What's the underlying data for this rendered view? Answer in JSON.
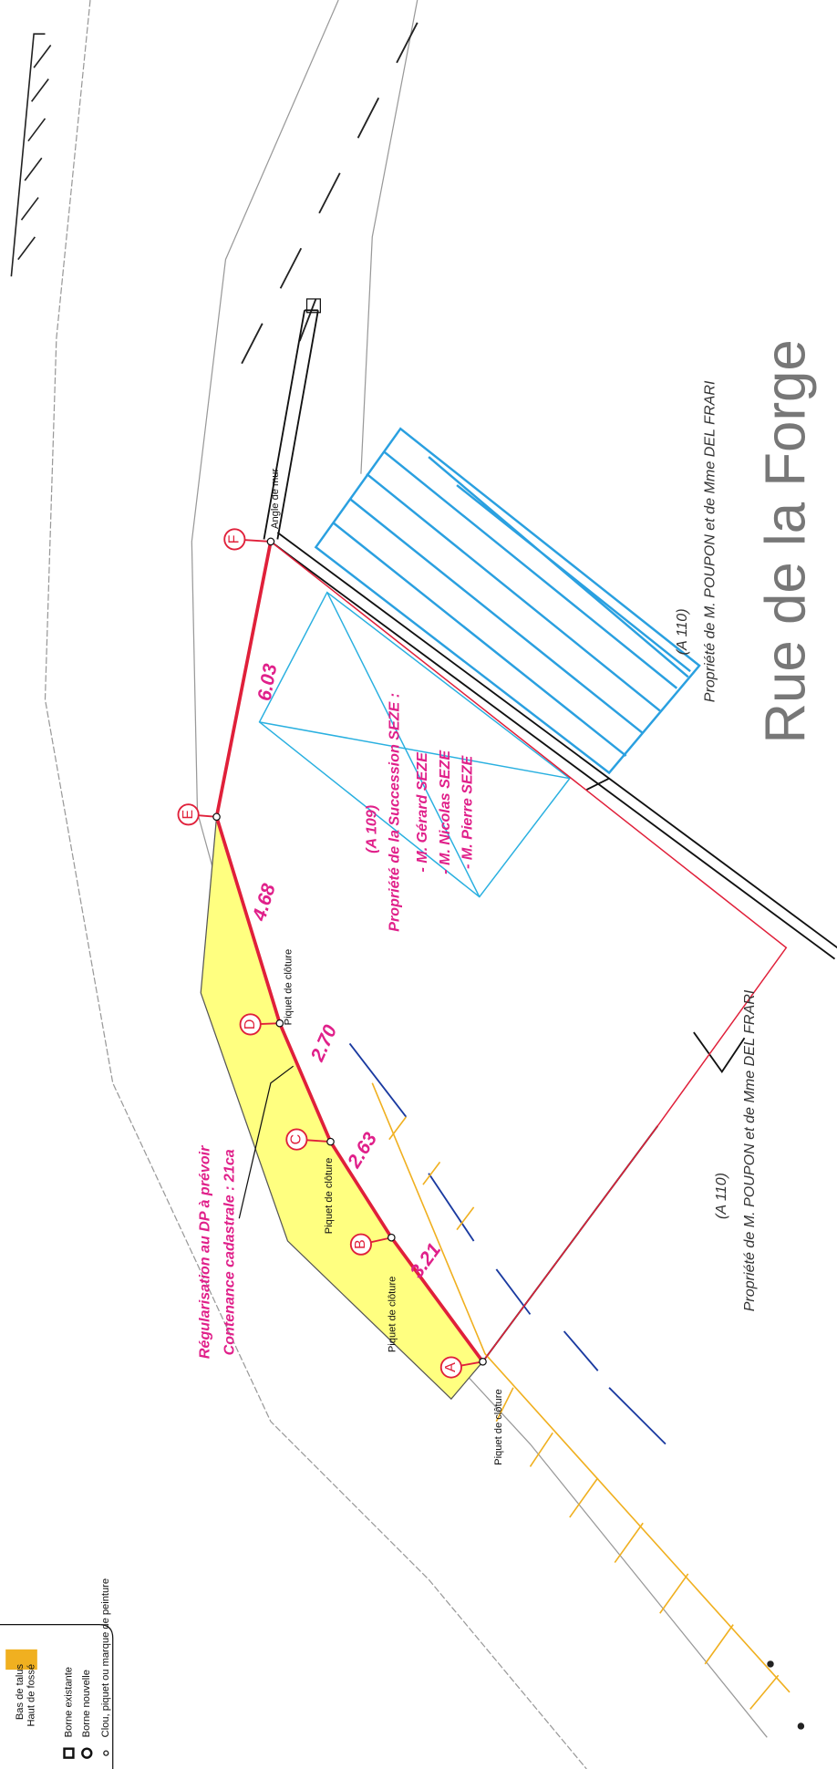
{
  "street": "Rue de la Forge",
  "parcels": [
    {
      "ref": "(A 110)",
      "owner": "Propriété de M. POUPON et de Mme DEL FRARI"
    },
    {
      "ref": "(A 109)",
      "owner": "Propriété de la Succession SEZE :",
      "members": [
        "- M. Gérard SEZE",
        "- M. Nicolas SEZE",
        "- M. Pierre SEZE"
      ]
    },
    {
      "ref": "(A 110)",
      "owner": "Propriété de M. POUPON et de Mme DEL FRARI"
    }
  ],
  "note": [
    "Régularisation au DP à prévoir",
    "Contenance cadastrale : 21ca"
  ],
  "distances": [
    "6.03",
    "4.68",
    "2.70",
    "2.63",
    "3.21"
  ],
  "points": [
    "A",
    "B",
    "C",
    "D",
    "E",
    "F"
  ],
  "point_notes": [
    "Piquet de clôture",
    "Piquet de clôture",
    "Piquet de clôture",
    "Piquet de clôture",
    "Angle de mur"
  ],
  "legend": [
    "Bas de talus",
    "Haut de fossé",
    "Borne existante",
    "Borne nouvelle",
    "Clou, piquet ou marque de peinture"
  ]
}
